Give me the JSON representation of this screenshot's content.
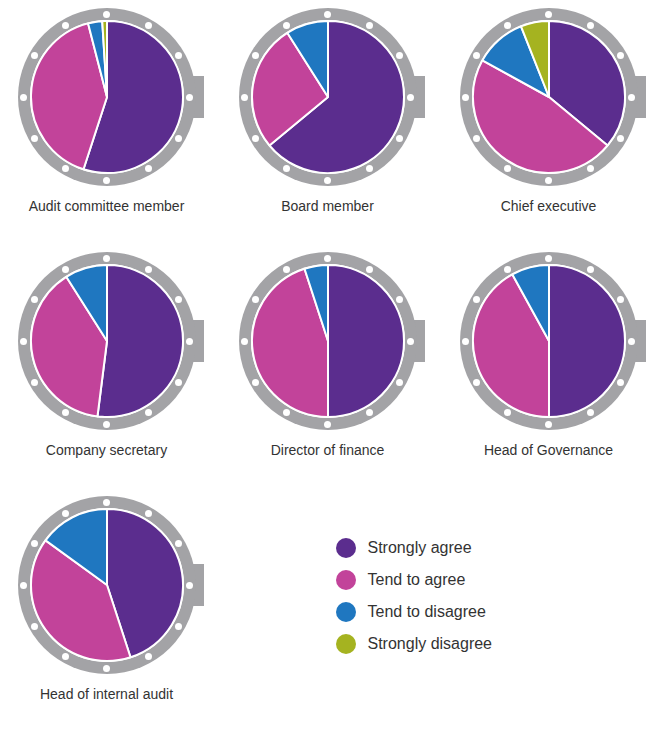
{
  "chart_data": [
    {
      "type": "pie",
      "title": "Audit committee member",
      "categories": [
        "Strongly agree",
        "Tend to agree",
        "Tend to disagree",
        "Strongly disagree"
      ],
      "values": [
        55,
        41,
        3,
        1
      ],
      "colors": [
        "#5b2d8e",
        "#c2439a",
        "#1f77c0",
        "#a5b320"
      ]
    },
    {
      "type": "pie",
      "title": "Board member",
      "categories": [
        "Strongly agree",
        "Tend to agree",
        "Tend to disagree",
        "Strongly disagree"
      ],
      "values": [
        64,
        27,
        9,
        0
      ],
      "colors": [
        "#5b2d8e",
        "#c2439a",
        "#1f77c0",
        "#a5b320"
      ]
    },
    {
      "type": "pie",
      "title": "Chief executive",
      "categories": [
        "Strongly agree",
        "Tend to agree",
        "Tend to disagree",
        "Strongly disagree"
      ],
      "values": [
        36,
        47,
        11,
        6
      ],
      "colors": [
        "#5b2d8e",
        "#c2439a",
        "#1f77c0",
        "#a5b320"
      ]
    },
    {
      "type": "pie",
      "title": "Company secretary",
      "categories": [
        "Strongly agree",
        "Tend to agree",
        "Tend to disagree",
        "Strongly disagree"
      ],
      "values": [
        52,
        39,
        9,
        0
      ],
      "colors": [
        "#5b2d8e",
        "#c2439a",
        "#1f77c0",
        "#a5b320"
      ]
    },
    {
      "type": "pie",
      "title": "Director of finance",
      "categories": [
        "Strongly agree",
        "Tend to agree",
        "Tend to disagree",
        "Strongly disagree"
      ],
      "values": [
        50,
        45,
        5,
        0
      ],
      "colors": [
        "#5b2d8e",
        "#c2439a",
        "#1f77c0",
        "#a5b320"
      ]
    },
    {
      "type": "pie",
      "title": "Head of Governance",
      "categories": [
        "Strongly agree",
        "Tend to agree",
        "Tend to disagree",
        "Strongly disagree"
      ],
      "values": [
        50,
        42,
        8,
        0
      ],
      "colors": [
        "#5b2d8e",
        "#c2439a",
        "#1f77c0",
        "#a5b320"
      ]
    },
    {
      "type": "pie",
      "title": "Head of internal audit",
      "categories": [
        "Strongly agree",
        "Tend to agree",
        "Tend to disagree",
        "Strongly disagree"
      ],
      "values": [
        45,
        40,
        15,
        0
      ],
      "colors": [
        "#5b2d8e",
        "#c2439a",
        "#1f77c0",
        "#a5b320"
      ],
      "legend": "right"
    }
  ]
}
